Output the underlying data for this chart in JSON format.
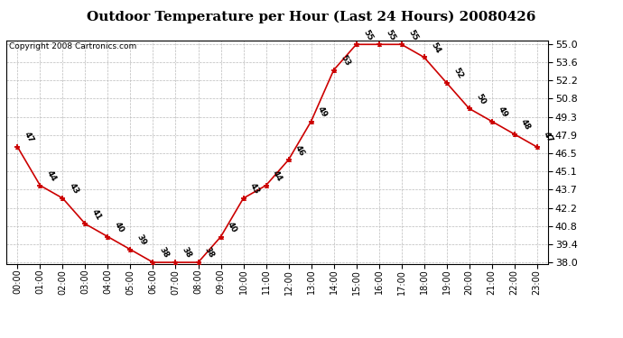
{
  "title": "Outdoor Temperature per Hour (Last 24 Hours) 20080426",
  "copyright": "Copyright 2008 Cartronics.com",
  "hours": [
    "00:00",
    "01:00",
    "02:00",
    "03:00",
    "04:00",
    "05:00",
    "06:00",
    "07:00",
    "08:00",
    "09:00",
    "10:00",
    "11:00",
    "12:00",
    "13:00",
    "14:00",
    "15:00",
    "16:00",
    "17:00",
    "18:00",
    "19:00",
    "20:00",
    "21:00",
    "22:00",
    "23:00"
  ],
  "temperatures": [
    47,
    44,
    43,
    41,
    40,
    39,
    38,
    38,
    38,
    40,
    43,
    44,
    46,
    49,
    53,
    55,
    55,
    55,
    54,
    52,
    50,
    49,
    48,
    47
  ],
  "ylim_min": 38.0,
  "ylim_max": 55.0,
  "yticks": [
    38.0,
    39.4,
    40.8,
    42.2,
    43.7,
    45.1,
    46.5,
    47.9,
    49.3,
    50.8,
    52.2,
    53.6,
    55.0
  ],
  "line_color": "#cc0000",
  "marker_color": "#cc0000",
  "bg_color": "#ffffff",
  "grid_color": "#bbbbbb",
  "title_fontsize": 11,
  "copyright_fontsize": 6.5,
  "label_fontsize": 6.5,
  "ytick_fontsize": 8,
  "xtick_fontsize": 7
}
